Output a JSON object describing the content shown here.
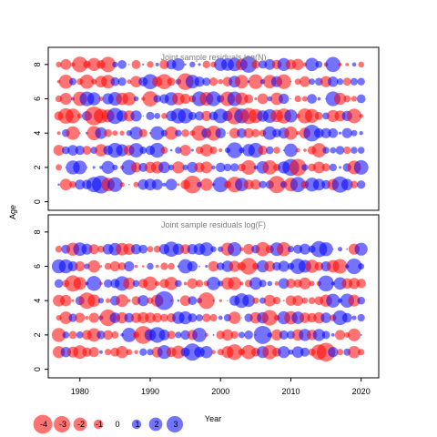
{
  "chart_data": {
    "type": "scatter",
    "subtype": "bubble-residuals",
    "ylabel": "Age",
    "xlabel": "Year",
    "xlim": [
      1975.5,
      2022.5
    ],
    "ylim": [
      -0.5,
      9
    ],
    "x_ticks": [
      1980,
      1990,
      2000,
      2010,
      2020
    ],
    "y_ticks": [
      0,
      2,
      4,
      6,
      8
    ],
    "years_N": [
      1977,
      2020
    ],
    "years_F": [
      1977,
      2020
    ],
    "ages_N": [
      1,
      2,
      3,
      4,
      5,
      6,
      7,
      8
    ],
    "ages_F": [
      1,
      2,
      3,
      4,
      5,
      6,
      7
    ],
    "colors": {
      "positive": "#0000ff",
      "negative": "#ff0000",
      "opacity": 0.55
    },
    "panels": [
      {
        "title": "Joint sample residuals log(N)"
      },
      {
        "title": "Joint sample residuals log(F)"
      }
    ],
    "legend": {
      "values": [
        -4,
        -3,
        -2,
        -1,
        0,
        1,
        2,
        3
      ],
      "labels": [
        "-4",
        "-3",
        "-2",
        "-1",
        "0",
        "1",
        "2",
        "3"
      ]
    }
  }
}
